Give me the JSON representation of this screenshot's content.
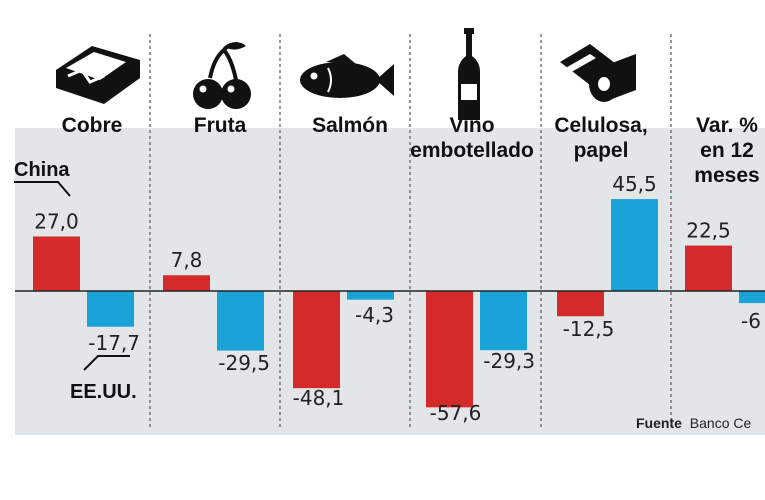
{
  "chart_data": {
    "type": "bar",
    "categories": [
      "Cobre",
      "Fruta",
      "Salmón",
      "Vino embotellado",
      "Celulosa, papel",
      "Var. % en 12 meses"
    ],
    "category_lines": [
      [
        "Cobre"
      ],
      [
        "Fruta"
      ],
      [
        "Salmón"
      ],
      [
        "Vino",
        "embotellado"
      ],
      [
        "Celulosa,",
        "papel"
      ],
      [
        "Var. %",
        "en 12",
        "meses"
      ]
    ],
    "series": [
      {
        "name": "China",
        "values": [
          27.0,
          7.8,
          -48.1,
          -57.6,
          -12.5,
          22.5
        ]
      },
      {
        "name": "EE.UU.",
        "values": [
          -17.7,
          -29.5,
          -4.3,
          -29.3,
          45.5,
          -6
        ]
      }
    ],
    "labels": {
      "China": [
        "27,0",
        "7,8",
        "-48,1",
        "-57,6",
        "-12,5",
        "22,5"
      ],
      "EE.UU.": [
        "-17,7",
        "-29,5",
        "-4,3",
        "-29,3",
        "45,5",
        "-6"
      ]
    },
    "legend": {
      "china": "China",
      "usa": "EE.UU."
    },
    "ylim": [
      -63,
      65
    ],
    "source_bold": "Fuente",
    "source_text": "Banco Ce",
    "colors": {
      "china": "#d42a2a",
      "usa": "#1aa3d6",
      "panel": "#e3e6e9"
    }
  }
}
